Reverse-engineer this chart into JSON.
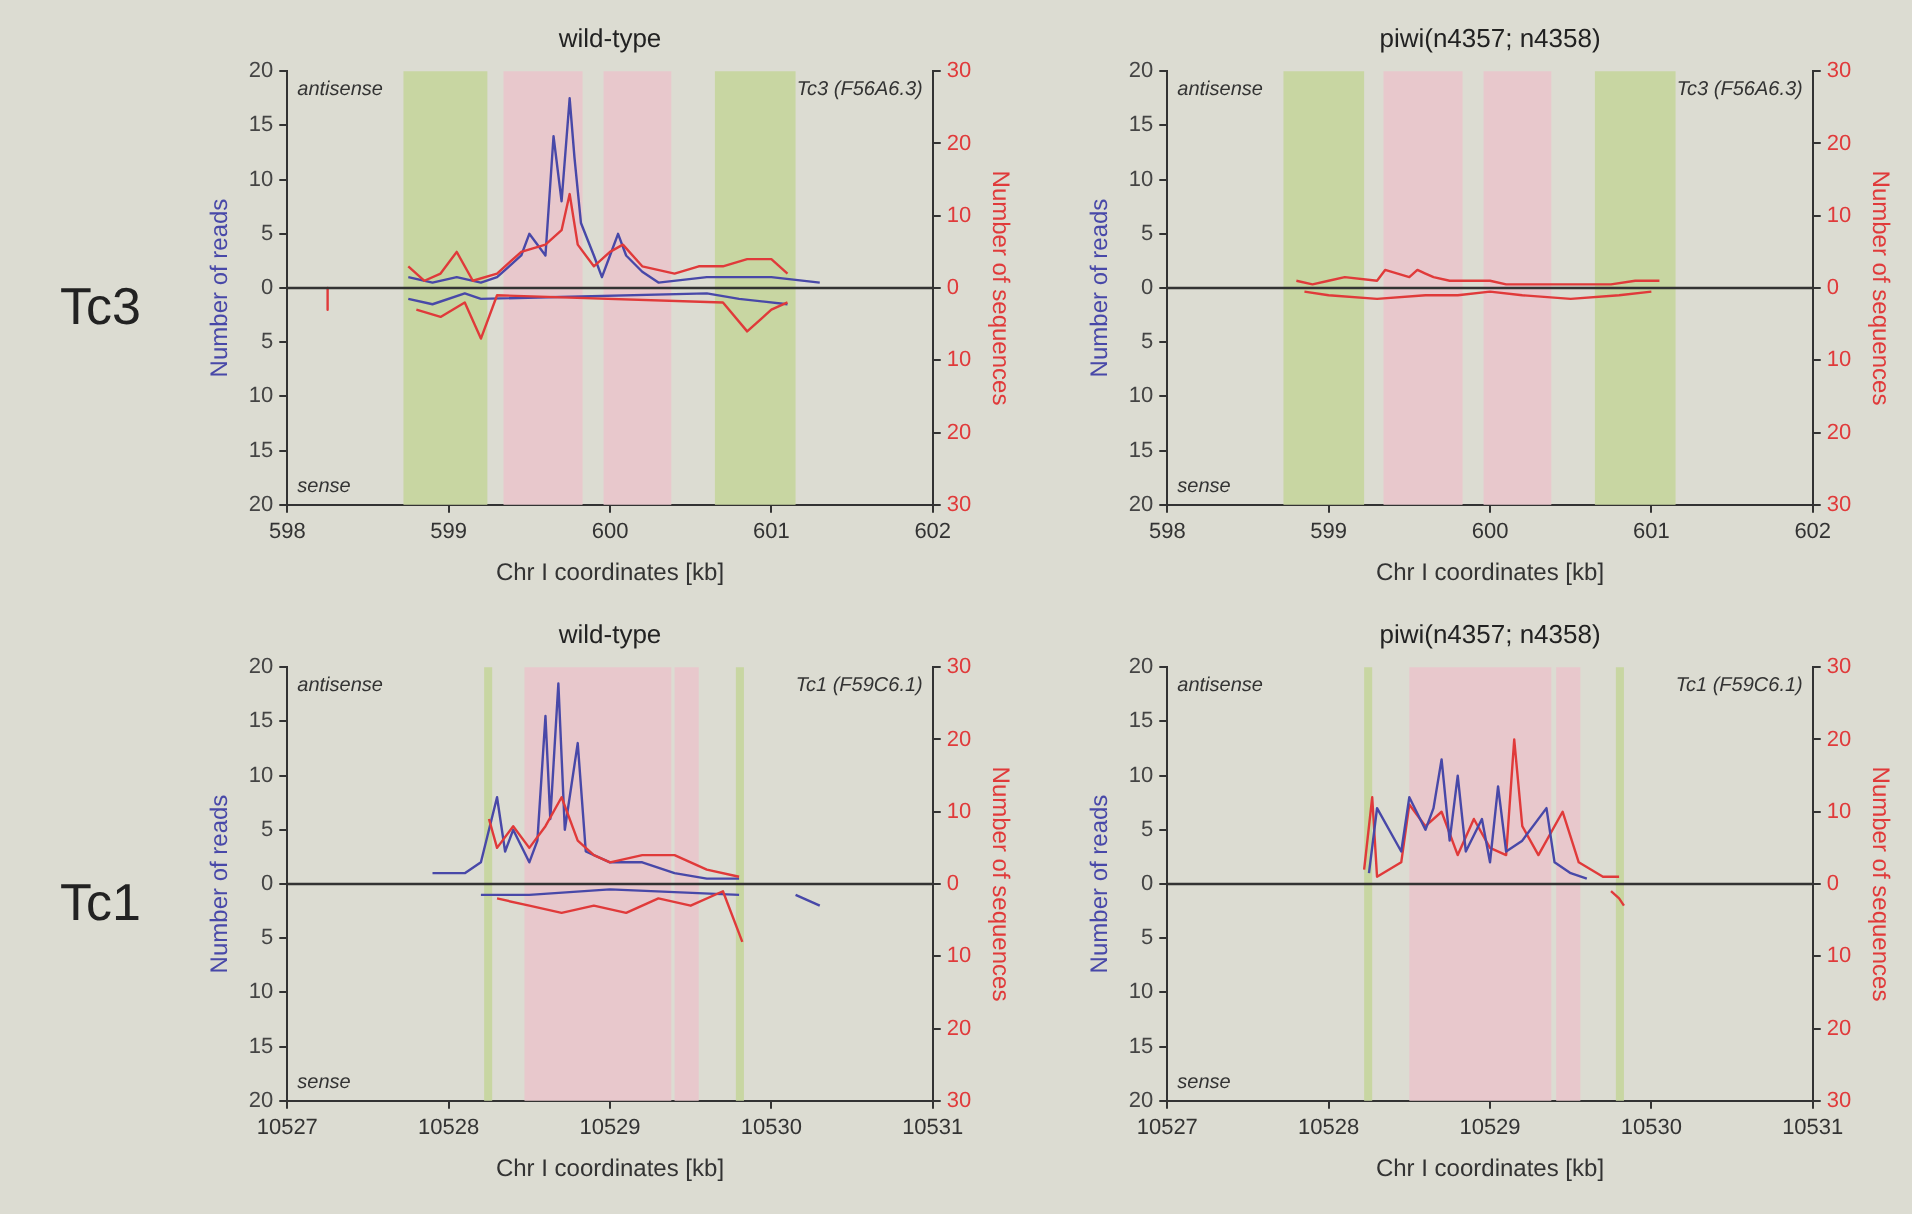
{
  "chart_data": [
    {
      "type": "line",
      "title": "wild-type",
      "xlabel": "Chr I coordinates [kb]",
      "ylabel": "Number of reads",
      "y2label": "Number of sequences",
      "annotations": [
        "antisense",
        "sense",
        "Tc3 (F56A6.3)",
        "Tc3"
      ],
      "xlim": [
        598,
        602
      ],
      "xticks": [
        598,
        599,
        600,
        601,
        602
      ],
      "ylim": [
        -20,
        20
      ],
      "yticks": [
        {
          "value": -20,
          "label": "20"
        },
        {
          "value": -15,
          "label": "15"
        },
        {
          "value": -10,
          "label": "10"
        },
        {
          "value": -5,
          "label": "5"
        },
        0,
        5,
        10,
        15,
        20
      ],
      "y2lim": [
        -30,
        30
      ],
      "y2ticks": [
        30,
        20,
        10,
        0,
        {
          "value": -10,
          "label": "10"
        },
        {
          "value": -20,
          "label": "20"
        },
        {
          "value": -30,
          "label": "30"
        }
      ],
      "grid": false,
      "legend": false,
      "marker": "none",
      "line_style": "solid",
      "bands": [
        {
          "axis": "x",
          "from": 598.72,
          "to": 599.24,
          "color": "#c8d6a2"
        },
        {
          "axis": "x",
          "from": 599.34,
          "to": 599.83,
          "color": "#e8c8cc"
        },
        {
          "axis": "x",
          "from": 599.96,
          "to": 600.38,
          "color": "#e8c8cc"
        },
        {
          "axis": "x",
          "from": 600.65,
          "to": 601.15,
          "color": "#c8d6a2"
        }
      ],
      "ref_lines": [
        {
          "axis": "y",
          "value": 0,
          "color": "#333333"
        }
      ],
      "series": [
        {
          "color": "#e03a3a",
          "axis": "y2",
          "x": [
            598.75,
            598.85,
            598.95,
            599.05,
            599.15,
            599.3,
            599.45,
            599.6,
            599.7,
            599.75,
            599.8,
            599.9,
            600.0,
            600.08,
            600.2,
            600.4,
            600.55,
            600.7,
            600.85,
            601.0,
            601.1
          ],
          "values": [
            3,
            1,
            2,
            5,
            1,
            2,
            5,
            6,
            8,
            13,
            6,
            3,
            5,
            6,
            3,
            2,
            3,
            3,
            4,
            4,
            2
          ]
        },
        {
          "color": "#e03a3a",
          "axis": "y2",
          "x": [
            598.25,
            598.25,
            598.27,
            598.8,
            598.95,
            599.1,
            599.2,
            599.3,
            600.7,
            600.85,
            601.0,
            601.1
          ],
          "values": [
            0,
            -3,
            null,
            -3,
            -4,
            -2,
            -7,
            -1,
            -2,
            -6,
            -3,
            -2
          ]
        },
        {
          "color": "#4848a8",
          "x": [
            598.75,
            598.9,
            599.05,
            599.2,
            599.3,
            599.45,
            599.5,
            599.6,
            599.65,
            599.7,
            599.75,
            599.78,
            599.82,
            599.9,
            599.95,
            600.0,
            600.05,
            600.1,
            600.2,
            600.3,
            600.6,
            600.8,
            601.0,
            601.3
          ],
          "values": [
            1,
            0.5,
            1,
            0.5,
            1,
            3,
            5,
            3,
            14,
            8,
            17.5,
            12,
            6,
            3,
            1,
            3,
            5,
            3,
            1.5,
            0.5,
            1,
            1,
            1,
            0.5
          ]
        },
        {
          "color": "#4848a8",
          "x": [
            598.75,
            598.9,
            599.1,
            599.2,
            600.6,
            600.8,
            601.1
          ],
          "values": [
            -1,
            -1.5,
            -0.5,
            -1,
            -0.5,
            -1,
            -1.5
          ]
        }
      ]
    },
    {
      "type": "line",
      "title": "piwi(n4357; n4358)",
      "xlabel": "Chr I coordinates [kb]",
      "ylabel": "Number of reads",
      "y2label": "Number of sequences",
      "annotations": [
        "antisense",
        "sense",
        "Tc3 (F56A6.3)"
      ],
      "xlim": [
        598,
        602
      ],
      "xticks": [
        598,
        599,
        600,
        601,
        602
      ],
      "ylim": [
        -20,
        20
      ],
      "yticks": [
        {
          "value": -20,
          "label": "20"
        },
        {
          "value": -15,
          "label": "15"
        },
        {
          "value": -10,
          "label": "10"
        },
        {
          "value": -5,
          "label": "5"
        },
        0,
        5,
        10,
        15,
        20
      ],
      "y2lim": [
        -30,
        30
      ],
      "y2ticks": [
        30,
        20,
        10,
        0,
        {
          "value": -10,
          "label": "10"
        },
        {
          "value": -20,
          "label": "20"
        },
        {
          "value": -30,
          "label": "30"
        }
      ],
      "grid": false,
      "legend": false,
      "marker": "none",
      "line_style": "solid",
      "bands": [
        {
          "axis": "x",
          "from": 598.72,
          "to": 599.22,
          "color": "#c8d6a2"
        },
        {
          "axis": "x",
          "from": 599.34,
          "to": 599.83,
          "color": "#e8c8cc"
        },
        {
          "axis": "x",
          "from": 599.96,
          "to": 600.38,
          "color": "#e8c8cc"
        },
        {
          "axis": "x",
          "from": 600.65,
          "to": 601.15,
          "color": "#c8d6a2"
        }
      ],
      "ref_lines": [
        {
          "axis": "y",
          "value": 0,
          "color": "#333333"
        }
      ],
      "series": [
        {
          "color": "#e03a3a",
          "axis": "y2",
          "x": [
            598.8,
            598.9,
            599.0,
            599.1,
            599.3,
            599.35,
            599.5,
            599.55,
            599.6,
            599.65,
            599.75,
            600.0,
            600.1,
            600.3,
            600.5,
            600.75,
            600.9,
            601.05
          ],
          "values": [
            1,
            0.5,
            1,
            1.5,
            1,
            2.5,
            1.5,
            2.5,
            2,
            1.5,
            1,
            1,
            0.5,
            0.5,
            0.5,
            0.5,
            1,
            1
          ]
        },
        {
          "color": "#e03a3a",
          "axis": "y2",
          "x": [
            598.85,
            599.0,
            599.3,
            599.6,
            599.8,
            600.0,
            600.2,
            600.5,
            600.8,
            601.0
          ],
          "values": [
            -0.5,
            -1,
            -1.5,
            -1,
            -1,
            -0.5,
            -1,
            -1.5,
            -1,
            -0.5
          ]
        }
      ]
    },
    {
      "type": "line",
      "title": "wild-type",
      "xlabel": "Chr I coordinates [kb]",
      "ylabel": "Number of reads",
      "y2label": "Number of sequences",
      "annotations": [
        "antisense",
        "sense",
        "Tc1 (F59C6.1)",
        "Tc1"
      ],
      "xlim": [
        10527,
        10531
      ],
      "xticks": [
        10527,
        10528,
        10529,
        10530,
        10531
      ],
      "ylim": [
        -20,
        20
      ],
      "yticks": [
        {
          "value": -20,
          "label": "20"
        },
        {
          "value": -15,
          "label": "15"
        },
        {
          "value": -10,
          "label": "10"
        },
        {
          "value": -5,
          "label": "5"
        },
        0,
        5,
        10,
        15,
        20
      ],
      "y2lim": [
        -30,
        30
      ],
      "y2ticks": [
        30,
        20,
        10,
        0,
        {
          "value": -10,
          "label": "10"
        },
        {
          "value": -20,
          "label": "20"
        },
        {
          "value": -30,
          "label": "30"
        }
      ],
      "grid": false,
      "legend": false,
      "marker": "none",
      "line_style": "solid",
      "bands": [
        {
          "axis": "x",
          "from": 10528.22,
          "to": 10528.27,
          "color": "#c8d6a2"
        },
        {
          "axis": "x",
          "from": 10528.47,
          "to": 10529.38,
          "color": "#e8c8cc"
        },
        {
          "axis": "x",
          "from": 10529.4,
          "to": 10529.55,
          "color": "#e8c8cc"
        },
        {
          "axis": "x",
          "from": 10529.78,
          "to": 10529.83,
          "color": "#c8d6a2"
        }
      ],
      "ref_lines": [
        {
          "axis": "y",
          "value": 0,
          "color": "#333333"
        }
      ],
      "series": [
        {
          "color": "#e03a3a",
          "axis": "y2",
          "x": [
            10528.25,
            10528.3,
            10528.4,
            10528.5,
            10528.6,
            10528.7,
            10528.8,
            10528.9,
            10529.0,
            10529.2,
            10529.4,
            10529.6,
            10529.8
          ],
          "values": [
            9,
            5,
            8,
            5,
            8,
            12,
            6,
            4,
            3,
            4,
            4,
            2,
            1
          ]
        },
        {
          "color": "#e03a3a",
          "axis": "y2",
          "x": [
            10528.3,
            10528.5,
            10528.7,
            10528.9,
            10529.1,
            10529.3,
            10529.5,
            10529.7,
            10529.82
          ],
          "values": [
            -2,
            -3,
            -4,
            -3,
            -4,
            -2,
            -3,
            -1,
            -8
          ]
        },
        {
          "color": "#4848a8",
          "x": [
            10527.9,
            10528.1,
            10528.2,
            10528.3,
            10528.35,
            10528.4,
            10528.5,
            10528.55,
            10528.6,
            10528.63,
            10528.68,
            10528.72,
            10528.8,
            10528.85,
            10529.0,
            10529.2,
            10529.4,
            10529.6,
            10529.8
          ],
          "values": [
            1,
            1,
            2,
            8,
            3,
            5,
            2,
            4,
            15.5,
            6,
            18.5,
            5,
            13,
            3,
            2,
            2,
            1,
            0.5,
            0.5
          ]
        },
        {
          "color": "#4848a8",
          "x": [
            10528.2,
            10528.5,
            10529.0,
            10529.8,
            10529.9,
            10530.15,
            10530.3
          ],
          "values": [
            -1,
            -1,
            -0.5,
            -1,
            null,
            -1,
            -2
          ]
        }
      ]
    },
    {
      "type": "line",
      "title": "piwi(n4357; n4358)",
      "xlabel": "Chr I coordinates [kb]",
      "ylabel": "Number of reads",
      "y2label": "Number of sequences",
      "annotations": [
        "antisense",
        "sense",
        "Tc1 (F59C6.1)"
      ],
      "xlim": [
        10527,
        10531
      ],
      "xticks": [
        10527,
        10528,
        10529,
        10530,
        10531
      ],
      "ylim": [
        -20,
        20
      ],
      "yticks": [
        {
          "value": -20,
          "label": "20"
        },
        {
          "value": -15,
          "label": "15"
        },
        {
          "value": -10,
          "label": "10"
        },
        {
          "value": -5,
          "label": "5"
        },
        0,
        5,
        10,
        15,
        20
      ],
      "y2lim": [
        -30,
        30
      ],
      "y2ticks": [
        30,
        20,
        10,
        0,
        {
          "value": -10,
          "label": "10"
        },
        {
          "value": -20,
          "label": "20"
        },
        {
          "value": -30,
          "label": "30"
        }
      ],
      "grid": false,
      "legend": false,
      "marker": "none",
      "line_style": "solid",
      "bands": [
        {
          "axis": "x",
          "from": 10528.22,
          "to": 10528.27,
          "color": "#c8d6a2"
        },
        {
          "axis": "x",
          "from": 10528.5,
          "to": 10529.38,
          "color": "#e8c8cc"
        },
        {
          "axis": "x",
          "from": 10529.41,
          "to": 10529.56,
          "color": "#e8c8cc"
        },
        {
          "axis": "x",
          "from": 10529.78,
          "to": 10529.83,
          "color": "#c8d6a2"
        }
      ],
      "ref_lines": [
        {
          "axis": "y",
          "value": 0,
          "color": "#333333"
        }
      ],
      "series": [
        {
          "color": "#4848a8",
          "x": [
            10528.25,
            10528.3,
            10528.45,
            10528.5,
            10528.6,
            10528.65,
            10528.7,
            10528.75,
            10528.8,
            10528.85,
            10528.95,
            10529.0,
            10529.05,
            10529.1,
            10529.2,
            10529.35,
            10529.4,
            10529.5,
            10529.6
          ],
          "values": [
            1,
            7,
            3,
            8,
            5,
            7,
            11.5,
            4,
            10,
            3,
            6,
            2,
            9,
            3,
            4,
            7,
            2,
            1,
            0.5
          ]
        },
        {
          "color": "#e03a3a",
          "axis": "y2",
          "x": [
            10528.22,
            10528.27,
            10528.3,
            10528.45,
            10528.5,
            10528.6,
            10528.7,
            10528.8,
            10528.9,
            10529.0,
            10529.1,
            10529.15,
            10529.2,
            10529.3,
            10529.45,
            10529.55,
            10529.7,
            10529.8
          ],
          "values": [
            2,
            12,
            1,
            3,
            11,
            8,
            10,
            4,
            9,
            5,
            4,
            20,
            8,
            4,
            10,
            3,
            1,
            1
          ]
        },
        {
          "color": "#e03a3a",
          "axis": "y2",
          "x": [
            10529.75,
            10529.8,
            10529.83
          ],
          "values": [
            -1,
            -2,
            -3
          ]
        }
      ]
    }
  ]
}
